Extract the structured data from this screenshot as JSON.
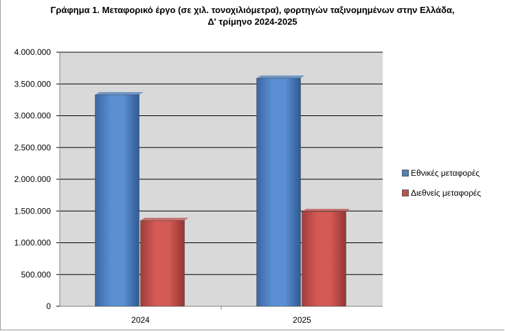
{
  "chart_data": {
    "type": "bar",
    "title": "Γράφημα 1. Μεταφορικό έργο (σε χιλ. τονοχιλιόμετρα), φορτηγών ταξινομημένων στην Ελλάδα,",
    "subtitle": "Δ' τρίμηνο 2024-2025",
    "categories": [
      "2024",
      "2025"
    ],
    "series": [
      {
        "name": "Εθνικές μεταφορές",
        "values": [
          3330000,
          3590000
        ],
        "color": "#4f81bd"
      },
      {
        "name": "Διεθνείς μεταφορές",
        "values": [
          1350000,
          1490000
        ],
        "color": "#c0504d"
      }
    ],
    "y_ticks": [
      "0",
      "500.000",
      "1.000.000",
      "1.500.000",
      "2.000.000",
      "2.500.000",
      "3.000.000",
      "3.500.000",
      "4.000.000"
    ],
    "ylim": [
      0,
      4000000
    ],
    "xlabel": "",
    "ylabel": "",
    "grid": true,
    "plot_background": "#d9d9d9",
    "legend_position": "right"
  }
}
